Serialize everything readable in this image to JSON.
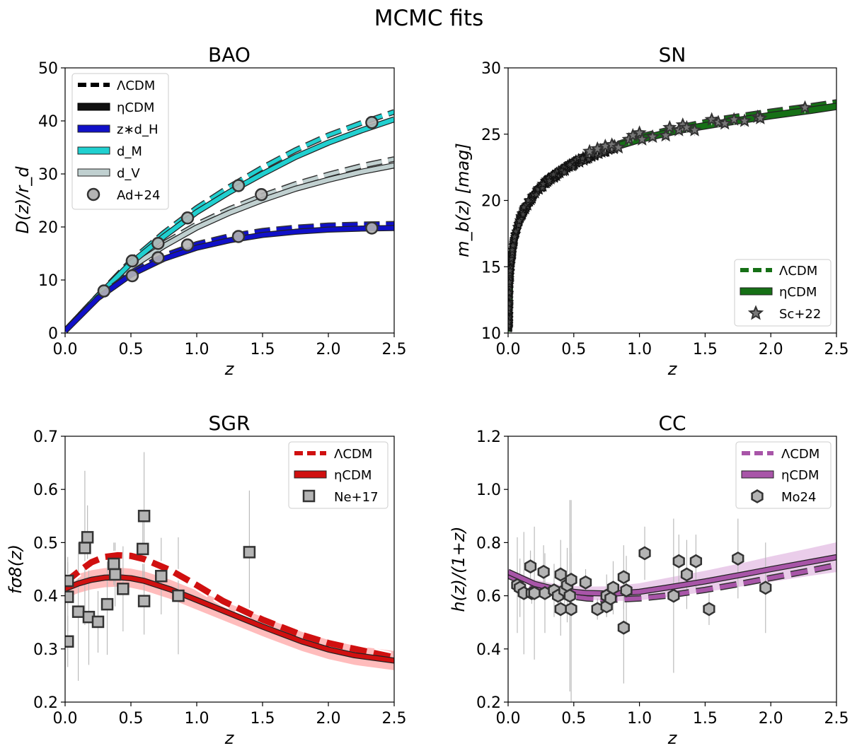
{
  "figure": {
    "suptitle": "MCMC fits"
  },
  "colors": {
    "bao_zdH": "#1010c8",
    "bao_dM": "#20d0d0",
    "bao_dV": "#c0d0d0",
    "sn": "#167016",
    "sgr": "#d01010",
    "sgr_band": "#ffb0b0",
    "cc": "#a855a8",
    "cc_band": "#e8c8e8",
    "marker": "#b4b4b4",
    "edge": "#333333"
  },
  "chart_data": [
    {
      "id": "bao",
      "type": "line",
      "title": "BAO",
      "xlabel": "z",
      "ylabel": "D(z)/r_d",
      "xlim": [
        0,
        2.5
      ],
      "ylim": [
        0,
        50
      ],
      "xticks": [
        "0.0",
        "0.5",
        "1.0",
        "1.5",
        "2.0",
        "2.5"
      ],
      "yticks": [
        "0",
        "10",
        "20",
        "30",
        "40",
        "50"
      ],
      "legend": [
        "ΛCDM",
        "ηCDM",
        "z∗d_H",
        "d_M",
        "d_V",
        "Ad+24"
      ],
      "series": [
        {
          "name": "z*d_H (ηCDM)",
          "x": [
            0,
            0.25,
            0.5,
            0.75,
            1.0,
            1.25,
            1.5,
            1.75,
            2.0,
            2.25,
            2.5
          ],
          "y": [
            0.4,
            6.6,
            11.0,
            14.0,
            16.1,
            17.5,
            18.5,
            19.1,
            19.5,
            19.7,
            19.8
          ]
        },
        {
          "name": "z*d_H (ΛCDM)",
          "x": [
            0,
            0.25,
            0.5,
            0.75,
            1.0,
            1.25,
            1.5,
            1.75,
            2.0,
            2.25,
            2.5
          ],
          "y": [
            0.4,
            6.7,
            11.4,
            14.6,
            16.8,
            18.3,
            19.3,
            19.9,
            20.3,
            20.5,
            20.6
          ]
        },
        {
          "name": "d_M (ηCDM)",
          "x": [
            0,
            0.25,
            0.5,
            0.75,
            1.0,
            1.25,
            1.5,
            1.75,
            2.0,
            2.25,
            2.5
          ],
          "y": [
            0.4,
            7.0,
            13.2,
            18.2,
            22.8,
            26.6,
            30.0,
            33.2,
            35.9,
            38.2,
            40.3
          ]
        },
        {
          "name": "d_M (ΛCDM)",
          "x": [
            0,
            0.25,
            0.5,
            0.75,
            1.0,
            1.25,
            1.5,
            1.75,
            2.0,
            2.25,
            2.5
          ],
          "y": [
            0.4,
            7.1,
            13.6,
            18.9,
            23.6,
            27.6,
            31.2,
            34.5,
            37.3,
            39.6,
            41.7
          ]
        },
        {
          "name": "d_V (ηCDM)",
          "x": [
            0,
            0.25,
            0.5,
            0.75,
            1.0,
            1.25,
            1.5,
            1.75,
            2.0,
            2.25,
            2.5
          ],
          "y": [
            0.4,
            7.0,
            12.4,
            16.4,
            19.9,
            22.7,
            25.1,
            27.2,
            28.9,
            30.4,
            31.6
          ]
        },
        {
          "name": "d_V (ΛCDM)",
          "x": [
            0,
            0.25,
            0.5,
            0.75,
            1.0,
            1.25,
            1.5,
            1.75,
            2.0,
            2.25,
            2.5
          ],
          "y": [
            0.4,
            7.1,
            12.7,
            16.9,
            20.5,
            23.4,
            25.9,
            28.1,
            29.9,
            31.5,
            32.8
          ]
        },
        {
          "name": "Ad+24",
          "points": [
            [
              0.295,
              7.93
            ],
            [
              0.51,
              13.6
            ],
            [
              0.51,
              10.8
            ],
            [
              0.706,
              16.9
            ],
            [
              0.706,
              14.2
            ],
            [
              0.93,
              21.7
            ],
            [
              0.93,
              16.6
            ],
            [
              1.317,
              27.8
            ],
            [
              1.317,
              18.2
            ],
            [
              1.491,
              26.1
            ],
            [
              2.33,
              39.7
            ],
            [
              2.33,
              19.8
            ]
          ]
        }
      ]
    },
    {
      "id": "sn",
      "type": "line",
      "title": "SN",
      "xlabel": "z",
      "ylabel": "m_b(z) [mag]",
      "xlim": [
        0,
        2.5
      ],
      "ylim": [
        10,
        30
      ],
      "xticks": [
        "0.0",
        "0.5",
        "1.0",
        "1.5",
        "2.0",
        "2.5"
      ],
      "yticks": [
        "10",
        "15",
        "20",
        "25",
        "30"
      ],
      "legend": [
        "ΛCDM",
        "ηCDM",
        "Sc+22"
      ],
      "series": [
        {
          "name": "ηCDM",
          "x": [
            0.003,
            0.01,
            0.02,
            0.05,
            0.1,
            0.2,
            0.3,
            0.5,
            0.7,
            1.0,
            1.3,
            1.6,
            2.0,
            2.3,
            2.5
          ],
          "y": [
            10.1,
            13.7,
            15.3,
            17.3,
            18.9,
            20.5,
            21.5,
            22.8,
            23.7,
            24.6,
            25.3,
            25.8,
            26.4,
            26.8,
            27.1
          ]
        },
        {
          "name": "ΛCDM",
          "x": [
            0.003,
            0.01,
            0.02,
            0.05,
            0.1,
            0.2,
            0.3,
            0.5,
            0.7,
            1.0,
            1.3,
            1.6,
            2.0,
            2.3,
            2.5
          ],
          "y": [
            10.1,
            13.7,
            15.3,
            17.3,
            18.9,
            20.5,
            21.5,
            22.9,
            23.8,
            24.8,
            25.5,
            26.1,
            26.7,
            27.1,
            27.4
          ]
        },
        {
          "name": "Sc+22 (high-z)",
          "points": [
            [
              0.62,
              23.7
            ],
            [
              0.68,
              23.9
            ],
            [
              0.74,
              24.1
            ],
            [
              0.79,
              24.2
            ],
            [
              0.84,
              24.0
            ],
            [
              0.92,
              24.6
            ],
            [
              0.95,
              24.9
            ],
            [
              1.0,
              25.1
            ],
            [
              1.02,
              24.6
            ],
            [
              1.1,
              24.8
            ],
            [
              1.2,
              24.9
            ],
            [
              1.23,
              25.5
            ],
            [
              1.3,
              25.3
            ],
            [
              1.33,
              25.7
            ],
            [
              1.36,
              25.5
            ],
            [
              1.42,
              25.3
            ],
            [
              1.55,
              26.1
            ],
            [
              1.6,
              25.9
            ],
            [
              1.65,
              25.8
            ],
            [
              1.72,
              26.1
            ],
            [
              1.8,
              26.0
            ],
            [
              1.9,
              26.3
            ],
            [
              1.92,
              26.2
            ],
            [
              2.26,
              27.0
            ]
          ]
        }
      ]
    },
    {
      "id": "sgr",
      "type": "line",
      "title": "SGR",
      "xlabel": "z",
      "ylabel": "fσ8(z)",
      "xlim": [
        0,
        2.5
      ],
      "ylim": [
        0.2,
        0.7
      ],
      "xticks": [
        "0.0",
        "0.5",
        "1.0",
        "1.5",
        "2.0",
        "2.5"
      ],
      "yticks": [
        "0.2",
        "0.3",
        "0.4",
        "0.5",
        "0.6",
        "0.7"
      ],
      "legend": [
        "ΛCDM",
        "ηCDM",
        "Ne+17"
      ],
      "series": [
        {
          "name": "ηCDM",
          "x": [
            0,
            0.1,
            0.2,
            0.3,
            0.4,
            0.5,
            0.6,
            0.8,
            1.0,
            1.2,
            1.5,
            1.8,
            2.0,
            2.2,
            2.5
          ],
          "y": [
            0.413,
            0.423,
            0.43,
            0.434,
            0.435,
            0.433,
            0.428,
            0.412,
            0.392,
            0.372,
            0.342,
            0.314,
            0.299,
            0.288,
            0.278
          ]
        },
        {
          "name": "ΛCDM",
          "x": [
            0,
            0.1,
            0.2,
            0.3,
            0.4,
            0.5,
            0.6,
            0.8,
            1.0,
            1.2,
            1.5,
            1.8,
            2.0,
            2.2,
            2.5
          ],
          "y": [
            0.425,
            0.445,
            0.463,
            0.473,
            0.476,
            0.475,
            0.469,
            0.448,
            0.42,
            0.39,
            0.355,
            0.326,
            0.311,
            0.3,
            0.284
          ]
        },
        {
          "name": "Ne+17",
          "points": [
            [
              0.02,
              0.314,
              0.048
            ],
            [
              0.02,
              0.398,
              0.065
            ],
            [
              0.02,
              0.428,
              0.045
            ],
            [
              0.1,
              0.37,
              0.13
            ],
            [
              0.15,
              0.49,
              0.145
            ],
            [
              0.17,
              0.51,
              0.06
            ],
            [
              0.18,
              0.36,
              0.09
            ],
            [
              0.25,
              0.351,
              0.058
            ],
            [
              0.32,
              0.384,
              0.095
            ],
            [
              0.37,
              0.46,
              0.04
            ],
            [
              0.38,
              0.44,
              0.06
            ],
            [
              0.44,
              0.413,
              0.08
            ],
            [
              0.59,
              0.488,
              0.06
            ],
            [
              0.6,
              0.55,
              0.12
            ],
            [
              0.6,
              0.39,
              0.063
            ],
            [
              0.73,
              0.437,
              0.072
            ],
            [
              0.86,
              0.4,
              0.11
            ],
            [
              1.4,
              0.482,
              0.116
            ]
          ]
        }
      ]
    },
    {
      "id": "cc",
      "type": "line",
      "title": "CC",
      "xlabel": "z",
      "ylabel": "h(z)/(1+z)",
      "xlim": [
        0,
        2.5
      ],
      "ylim": [
        0.2,
        1.2
      ],
      "xticks": [
        "0.0",
        "0.5",
        "1.0",
        "1.5",
        "2.0",
        "2.5"
      ],
      "yticks": [
        "0.2",
        "0.4",
        "0.6",
        "0.8",
        "1.0",
        "1.2"
      ],
      "legend": [
        "ΛCDM",
        "ηCDM",
        "Mo24"
      ],
      "series": [
        {
          "name": "ηCDM",
          "x": [
            0,
            0.2,
            0.4,
            0.6,
            0.8,
            1.0,
            1.2,
            1.5,
            1.8,
            2.0,
            2.3,
            2.5
          ],
          "y": [
            0.69,
            0.645,
            0.62,
            0.61,
            0.608,
            0.615,
            0.63,
            0.654,
            0.681,
            0.7,
            0.727,
            0.745
          ]
        },
        {
          "name": "ΛCDM",
          "x": [
            0,
            0.2,
            0.4,
            0.6,
            0.8,
            1.0,
            1.2,
            1.5,
            1.8,
            2.0,
            2.3,
            2.5
          ],
          "y": [
            0.676,
            0.63,
            0.603,
            0.59,
            0.585,
            0.59,
            0.6,
            0.622,
            0.648,
            0.667,
            0.695,
            0.715
          ]
        },
        {
          "name": "Mo24",
          "points": [
            [
              0.07,
              0.64,
              0.18
            ],
            [
              0.09,
              0.63,
              0.11
            ],
            [
              0.12,
              0.61,
              0.23
            ],
            [
              0.17,
              0.71,
              0.06
            ],
            [
              0.18,
              0.61,
              0.04
            ],
            [
              0.2,
              0.61,
              0.25
            ],
            [
              0.27,
              0.69,
              0.1
            ],
            [
              0.28,
              0.61,
              0.15
            ],
            [
              0.35,
              0.62,
              0.1
            ],
            [
              0.38,
              0.6,
              0.04
            ],
            [
              0.4,
              0.68,
              0.13
            ],
            [
              0.4,
              0.55,
              0.1
            ],
            [
              0.43,
              0.62,
              0.05
            ],
            [
              0.45,
              0.64,
              0.14
            ],
            [
              0.47,
              0.6,
              0.36
            ],
            [
              0.48,
              0.55,
              0.41
            ],
            [
              0.48,
              0.66,
              0.1
            ],
            [
              0.59,
              0.65,
              0.05
            ],
            [
              0.68,
              0.55,
              0.04
            ],
            [
              0.75,
              0.56,
              0.04
            ],
            [
              0.75,
              0.6,
              0.08
            ],
            [
              0.78,
              0.59,
              0.05
            ],
            [
              0.8,
              0.63,
              0.1
            ],
            [
              0.88,
              0.67,
              0.12
            ],
            [
              0.88,
              0.48,
              0.21
            ],
            [
              0.9,
              0.62,
              0.13
            ],
            [
              1.04,
              0.76,
              0.1
            ],
            [
              1.26,
              0.6,
              0.29
            ],
            [
              1.3,
              0.73,
              0.1
            ],
            [
              1.36,
              0.68,
              0.13
            ],
            [
              1.43,
              0.73,
              0.1
            ],
            [
              1.53,
              0.55,
              0.06
            ],
            [
              1.75,
              0.74,
              0.15
            ],
            [
              1.96,
              0.63,
              0.17
            ]
          ]
        }
      ]
    }
  ]
}
